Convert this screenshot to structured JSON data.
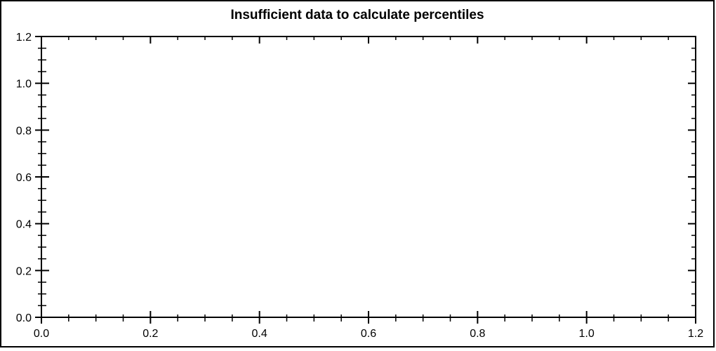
{
  "colors": {
    "background": "#ffffff",
    "frame_border": "#000000",
    "axis": "#000000",
    "text": "#000000"
  },
  "chart_data": {
    "type": "line",
    "title": "Insufficient data to calculate percentiles",
    "series": [],
    "xlabel": "",
    "ylabel": "",
    "xlim": [
      0.0,
      1.2
    ],
    "ylim": [
      0.0,
      1.2
    ],
    "x_tick_labels": [
      "0.0",
      "0.2",
      "0.4",
      "0.6",
      "0.8",
      "1.0",
      "1.2"
    ],
    "y_tick_labels": [
      "0.0",
      "0.2",
      "0.4",
      "0.6",
      "0.8",
      "1.0",
      "1.2"
    ],
    "x_major_step": 0.2,
    "x_minor_step": 0.05,
    "y_major_step": 0.2,
    "y_minor_step": 0.05,
    "grid": false,
    "legend": "none",
    "tick_style": "crossing on left/bottom, inward on top/right"
  }
}
